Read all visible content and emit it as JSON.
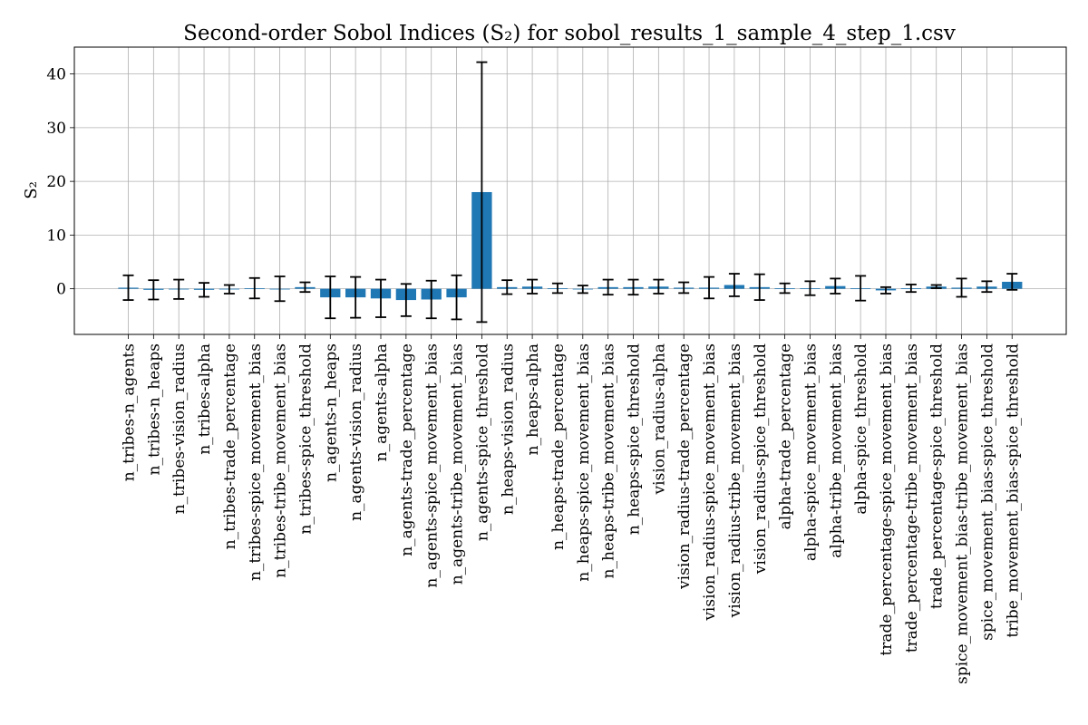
{
  "chart_data": {
    "type": "bar",
    "title": "Second-order Sobol Indices (S₂) for sobol_results_1_sample_4_step_1.csv",
    "xlabel": "",
    "ylabel": "S₂",
    "ylim": [
      -8.5,
      45
    ],
    "yticks": [
      0,
      10,
      20,
      30,
      40
    ],
    "grid": true,
    "bar_color": "#1f77b4",
    "error_color": "#000000",
    "categories": [
      "n_tribes-n_agents",
      "n_tribes-n_heaps",
      "n_tribes-vision_radius",
      "n_tribes-alpha",
      "n_tribes-trade_percentage",
      "n_tribes-spice_movement_bias",
      "n_tribes-tribe_movement_bias",
      "n_tribes-spice_threshold",
      "n_agents-n_heaps",
      "n_agents-vision_radius",
      "n_agents-alpha",
      "n_agents-trade_percentage",
      "n_agents-spice_movement_bias",
      "n_agents-tribe_movement_bias",
      "n_agents-spice_threshold",
      "n_heaps-vision_radius",
      "n_heaps-alpha",
      "n_heaps-trade_percentage",
      "n_heaps-spice_movement_bias",
      "n_heaps-tribe_movement_bias",
      "n_heaps-spice_threshold",
      "vision_radius-alpha",
      "vision_radius-trade_percentage",
      "vision_radius-spice_movement_bias",
      "vision_radius-tribe_movement_bias",
      "vision_radius-spice_threshold",
      "alpha-trade_percentage",
      "alpha-spice_movement_bias",
      "alpha-tribe_movement_bias",
      "alpha-spice_threshold",
      "trade_percentage-spice_movement_bias",
      "trade_percentage-tribe_movement_bias",
      "trade_percentage-spice_threshold",
      "spice_movement_bias-tribe_movement_bias",
      "spice_movement_bias-spice_threshold",
      "tribe_movement_bias-spice_threshold"
    ],
    "values": [
      0.2,
      -0.2,
      -0.1,
      -0.2,
      -0.1,
      0.1,
      0.0,
      0.3,
      -1.6,
      -1.6,
      -1.8,
      -2.1,
      -2.0,
      -1.6,
      18.0,
      0.3,
      0.4,
      0.1,
      -0.1,
      0.3,
      0.3,
      0.4,
      0.2,
      0.2,
      0.7,
      0.3,
      0.1,
      0.1,
      0.5,
      0.1,
      -0.3,
      0.1,
      0.4,
      0.2,
      0.4,
      1.3
    ],
    "errors": [
      2.3,
      1.8,
      1.8,
      1.3,
      0.8,
      1.9,
      2.3,
      0.9,
      3.9,
      3.8,
      3.5,
      3.0,
      3.5,
      4.1,
      24.2,
      1.3,
      1.3,
      0.9,
      0.7,
      1.4,
      1.4,
      1.3,
      1.0,
      2.0,
      2.1,
      2.4,
      0.9,
      1.3,
      1.4,
      2.3,
      0.6,
      0.7,
      0.3,
      1.7,
      1.0,
      1.5
    ]
  }
}
